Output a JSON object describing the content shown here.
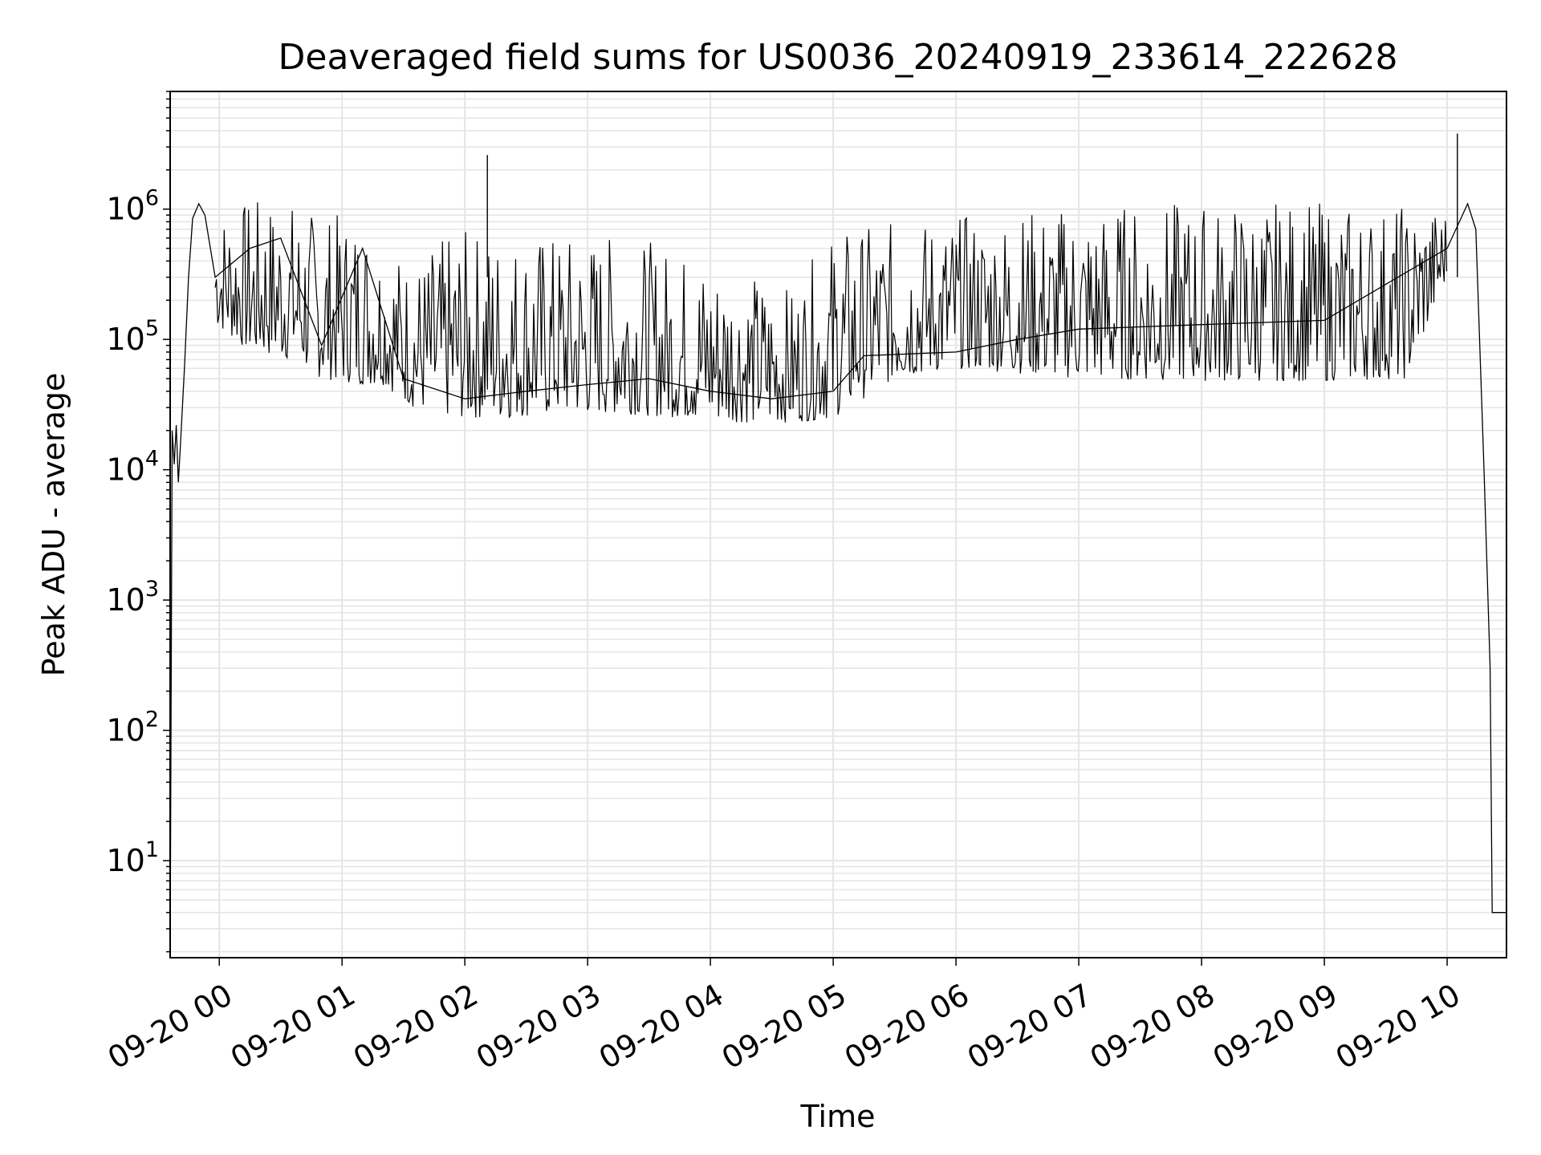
{
  "chart_data": {
    "type": "line",
    "title": "Deaveraged field sums for US0036_20240919_233614_222628",
    "xlabel": "Time",
    "ylabel": "Peak ADU - average",
    "yscale": "log",
    "ylim": [
      1.8,
      8000000
    ],
    "xlim": [
      "2024-09-19 23:36:00",
      "2024-09-20 10:29:00"
    ],
    "x_ticks": [
      "09-20 00",
      "09-20 01",
      "09-20 02",
      "09-20 03",
      "09-20 04",
      "09-20 05",
      "09-20 06",
      "09-20 07",
      "09-20 08",
      "09-20 09",
      "09-20 10"
    ],
    "y_ticks": [
      {
        "base": "10",
        "exp": "1"
      },
      {
        "base": "10",
        "exp": "2"
      },
      {
        "base": "10",
        "exp": "3"
      },
      {
        "base": "10",
        "exp": "4"
      },
      {
        "base": "10",
        "exp": "5"
      },
      {
        "base": "10",
        "exp": "6"
      }
    ],
    "grid": true,
    "line_color": "#000000",
    "grid_color": "#e5e5e5",
    "series": [
      {
        "description_points": [
          [
            "2024-09-19 23:36:00",
            2
          ],
          [
            "2024-09-19 23:37:00",
            20000
          ],
          [
            "2024-09-19 23:38:00",
            11000
          ],
          [
            "2024-09-19 23:39:00",
            22000
          ],
          [
            "2024-09-19 23:40:00",
            8000
          ],
          [
            "2024-09-19 23:41:00",
            15000
          ],
          [
            "2024-09-19 23:43:00",
            60000
          ],
          [
            "2024-09-19 23:45:00",
            300000
          ],
          [
            "2024-09-19 23:47:00",
            850000
          ],
          [
            "2024-09-19 23:50:00",
            1100000
          ],
          [
            "2024-09-19 23:53:00",
            900000
          ],
          [
            "2024-09-19 23:58:00",
            300000
          ],
          [
            "2024-09-20 00:15:00",
            500000
          ],
          [
            "2024-09-20 00:30:00",
            600000
          ],
          [
            "2024-09-20 00:50:00",
            90000
          ],
          [
            "2024-09-20 01:10:00",
            500000
          ],
          [
            "2024-09-20 01:30:00",
            50000
          ],
          [
            "2024-09-20 02:00:00",
            35000
          ],
          [
            "2024-09-20 02:30:00",
            40000
          ],
          [
            "2024-09-20 03:00:00",
            45000
          ],
          [
            "2024-09-20 03:30:00",
            50000
          ],
          [
            "2024-09-20 04:00:00",
            40000
          ],
          [
            "2024-09-20 04:30:00",
            35000
          ],
          [
            "2024-09-20 05:00:00",
            40000
          ],
          [
            "2024-09-20 05:15:00",
            75000
          ],
          [
            "2024-09-20 06:00:00",
            80000
          ],
          [
            "2024-09-20 06:30:00",
            100000
          ],
          [
            "2024-09-20 07:00:00",
            120000
          ],
          [
            "2024-09-20 08:00:00",
            130000
          ],
          [
            "2024-09-20 09:00:00",
            140000
          ],
          [
            "2024-09-20 10:00:00",
            500000
          ],
          [
            "2024-09-20 10:10:00",
            1100000
          ],
          [
            "2024-09-20 10:14:00",
            700000
          ],
          [
            "2024-09-20 10:18:00",
            10000
          ],
          [
            "2024-09-20 10:21:00",
            300
          ],
          [
            "2024-09-20 10:22:00",
            4
          ],
          [
            "2024-09-20 10:29:00",
            4
          ]
        ],
        "envelope": [
          {
            "x": "2024-09-19 23:58:00",
            "low": 130000,
            "high": 1000000
          },
          {
            "x": "2024-09-20 00:15:00",
            "low": 80000,
            "high": 1200000
          },
          {
            "x": "2024-09-20 00:35:00",
            "low": 70000,
            "high": 1200000
          },
          {
            "x": "2024-09-20 00:50:00",
            "low": 50000,
            "high": 900000
          },
          {
            "x": "2024-09-20 01:10:00",
            "low": 45000,
            "high": 1000000
          },
          {
            "x": "2024-09-20 01:20:00",
            "low": 45000,
            "high": 600000
          },
          {
            "x": "2024-09-20 01:35:00",
            "low": 30000,
            "high": 400000
          },
          {
            "x": "2024-09-20 01:55:00",
            "low": 25000,
            "high": 700000
          },
          {
            "x": "2024-09-20 02:20:00",
            "low": 25000,
            "high": 700000
          },
          {
            "x": "2024-09-20 02:45:00",
            "low": 27000,
            "high": 650000
          },
          {
            "x": "2024-09-20 03:15:00",
            "low": 27000,
            "high": 650000
          },
          {
            "x": "2024-09-20 03:45:00",
            "low": 25000,
            "high": 500000
          },
          {
            "x": "2024-09-20 04:15:00",
            "low": 23000,
            "high": 350000
          },
          {
            "x": "2024-09-20 04:40:00",
            "low": 23000,
            "high": 250000
          },
          {
            "x": "2024-09-20 05:00:00",
            "low": 25000,
            "high": 700000
          },
          {
            "x": "2024-09-20 05:30:00",
            "low": 50000,
            "high": 800000
          },
          {
            "x": "2024-09-20 06:00:00",
            "low": 60000,
            "high": 900000
          },
          {
            "x": "2024-09-20 06:30:00",
            "low": 55000,
            "high": 1000000
          },
          {
            "x": "2024-09-20 07:00:00",
            "low": 50000,
            "high": 1100000
          },
          {
            "x": "2024-09-20 08:00:00",
            "low": 48000,
            "high": 1150000
          },
          {
            "x": "2024-09-20 09:00:00",
            "low": 48000,
            "high": 1150000
          },
          {
            "x": "2024-09-20 09:40:00",
            "low": 50000,
            "high": 1100000
          },
          {
            "x": "2024-09-20 10:00:00",
            "low": 300000,
            "high": 1000000
          }
        ],
        "spikes": [
          {
            "x": "2024-09-20 02:11:00",
            "value": 2600000
          },
          {
            "x": "2024-09-20 10:05:00",
            "value": 3800000
          }
        ]
      }
    ]
  }
}
